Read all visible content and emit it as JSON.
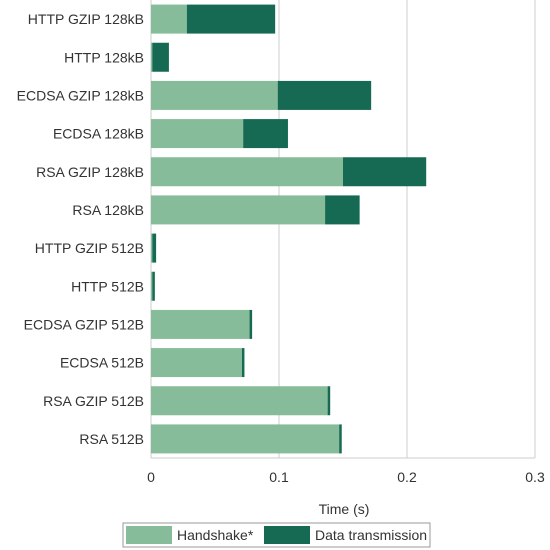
{
  "chart_data": {
    "type": "bar",
    "orientation": "horizontal",
    "stacked": true,
    "title": "",
    "xlabel": "Time (s)",
    "ylabel": "",
    "xlim": [
      0,
      0.3
    ],
    "xticks": [
      0,
      0.1,
      0.2,
      0.3
    ],
    "xtick_labels": [
      "0",
      "0.1",
      "0.2",
      "0.3"
    ],
    "grid": "vertical",
    "legend_position": "bottom",
    "categories": [
      "HTTP GZIP 128kB",
      "HTTP 128kB",
      "ECDSA GZIP 128kB",
      "ECDSA 128kB",
      "RSA GZIP 128kB",
      "RSA 128kB",
      "HTTP GZIP 512B",
      "HTTP 512B",
      "ECDSA GZIP 512B",
      "ECDSA 512B",
      "RSA GZIP 512B",
      "RSA 512B"
    ],
    "series": [
      {
        "name": "Handshake*",
        "color": "#86bc9a",
        "values": [
          0.028,
          0.001,
          0.099,
          0.072,
          0.15,
          0.136,
          0.001,
          0.001,
          0.077,
          0.071,
          0.138,
          0.147
        ]
      },
      {
        "name": "Data transmission",
        "color": "#166a53",
        "values": [
          0.069,
          0.013,
          0.073,
          0.035,
          0.065,
          0.027,
          0.003,
          0.002,
          0.002,
          0.002,
          0.002,
          0.002
        ]
      }
    ]
  }
}
